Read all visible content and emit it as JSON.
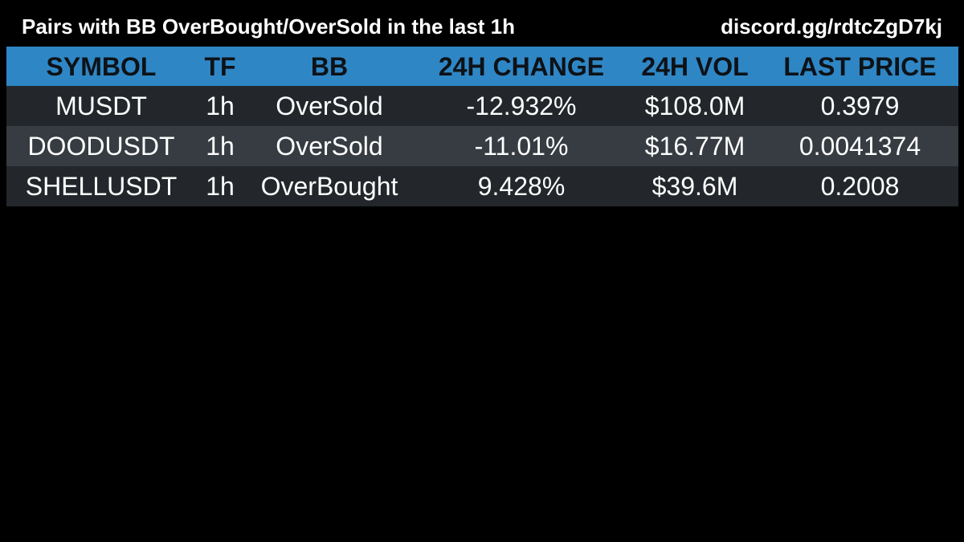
{
  "header": {
    "title": "Pairs with BB OverBought/OverSold in the last 1h",
    "discord": "discord.gg/rdtcZgD7kj"
  },
  "table": {
    "columns": [
      "SYMBOL",
      "TF",
      "BB",
      "24H CHANGE",
      "24H VOL",
      "LAST PRICE"
    ],
    "rows": [
      [
        "MUSDT",
        "1h",
        "OverSold",
        "-12.932%",
        "$108.0M",
        "0.3979"
      ],
      [
        "DOODUSDT",
        "1h",
        "OverSold",
        "-11.01%",
        "$16.77M",
        "0.0041374"
      ],
      [
        "SHELLUSDT",
        "1h",
        "OverBought",
        "9.428%",
        "$39.6M",
        "0.2008"
      ]
    ]
  },
  "colors": {
    "background": "#000000",
    "header_row": "#2f86c4",
    "row_dark": "#23272b",
    "row_light": "#363c42",
    "text": "#ffffff",
    "header_text": "#0d1217"
  }
}
